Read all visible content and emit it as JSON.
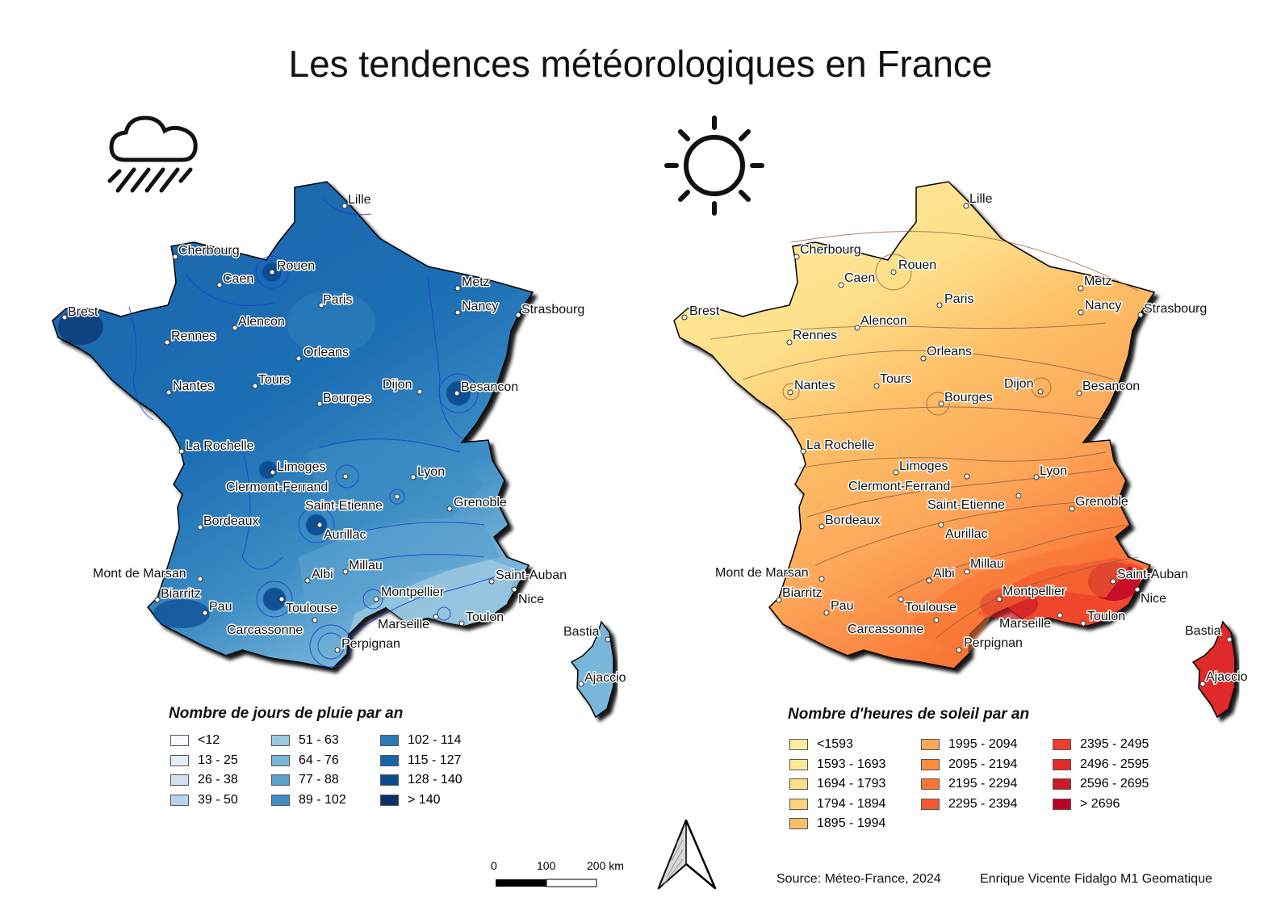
{
  "title": "Les tendences météorologiques en France",
  "icons": {
    "left": "rain-cloud-icon",
    "right": "sun-icon",
    "north": "north-arrow-icon"
  },
  "cities": {
    "lille": "Lille",
    "cherbourg": "Cherbourg",
    "rouen": "Rouen",
    "caen": "Caen",
    "paris": "Paris",
    "metz": "Metz",
    "brest": "Brest",
    "nancy": "Nancy",
    "strasbourg": "Strasbourg",
    "alencon": "Alencon",
    "rennes": "Rennes",
    "orleans": "Orleans",
    "tours": "Tours",
    "dijon": "Dijon",
    "nantes": "Nantes",
    "besancon": "Besancon",
    "bourges": "Bourges",
    "la_rochelle": "La Rochelle",
    "limoges": "Limoges",
    "lyon": "Lyon",
    "clermont": "Clermont-Ferrand",
    "grenoble": "Grenoble",
    "saint_etienne": "Saint-Etienne",
    "bordeaux": "Bordeaux",
    "aurillac": "Aurillac",
    "millau": "Millau",
    "mont_de_marsan": "Mont de Marsan",
    "albi": "Albi",
    "saint_auban": "Saint-Auban",
    "biarritz": "Biarritz",
    "montpellier": "Montpellier",
    "nice": "Nice",
    "pau": "Pau",
    "toulouse": "Toulouse",
    "marseille": "Marseille",
    "toulon": "Toulon",
    "carcassonne": "Carcassonne",
    "bastia": "Bastia",
    "perpignan": "Perpignan",
    "ajaccio": "Ajaccio"
  },
  "rain_legend": {
    "title": "Nombre de jours de pluie par an",
    "classes": [
      {
        "label": "<12",
        "color": "#f7fbff"
      },
      {
        "label": "13 - 25",
        "color": "#e3eef9"
      },
      {
        "label": "26 - 38",
        "color": "#d0e1f2"
      },
      {
        "label": "39 - 50",
        "color": "#b7d4ea"
      },
      {
        "label": "51 - 63",
        "color": "#9ac8e0"
      },
      {
        "label": "64 - 76",
        "color": "#7ab6d9"
      },
      {
        "label": "77 - 88",
        "color": "#5aa1cf"
      },
      {
        "label": "89 - 102",
        "color": "#3d8dc4"
      },
      {
        "label": "102 - 114",
        "color": "#2a7ab9"
      },
      {
        "label": "115 - 127",
        "color": "#1764ab"
      },
      {
        "label": "128 - 140",
        "color": "#0a4a90"
      },
      {
        "label": "> 140",
        "color": "#08306b"
      }
    ]
  },
  "sun_legend": {
    "title": "Nombre d'heures de soleil par an",
    "classes": [
      {
        "label": "<1593",
        "color": "#ffeda0"
      },
      {
        "label": "1593 - 1693",
        "color": "#ffe897"
      },
      {
        "label": "1694 - 1793",
        "color": "#fee08b"
      },
      {
        "label": "1794 - 1894",
        "color": "#fed27a"
      },
      {
        "label": "1895 - 1994",
        "color": "#fdbe66"
      },
      {
        "label": "1995 - 2094",
        "color": "#fda85a"
      },
      {
        "label": "2095 - 2194",
        "color": "#fd8d3c"
      },
      {
        "label": "2195 - 2294",
        "color": "#f97535"
      },
      {
        "label": "2295 - 2394",
        "color": "#f4582f"
      },
      {
        "label": "2395 - 2495",
        "color": "#ee3f2c"
      },
      {
        "label": "2496 - 2595",
        "color": "#e02b29"
      },
      {
        "label": "2596 - 2695",
        "color": "#cc1a27"
      },
      {
        "label": "> 2696",
        "color": "#bd0026"
      }
    ]
  },
  "scale_bar": {
    "tick_0": "0",
    "tick_100": "100",
    "tick_200": "200 km"
  },
  "footer": {
    "source": "Source: Méteo-France, 2024",
    "author": "Enrique Vicente Fidalgo M1 Geomatique"
  }
}
